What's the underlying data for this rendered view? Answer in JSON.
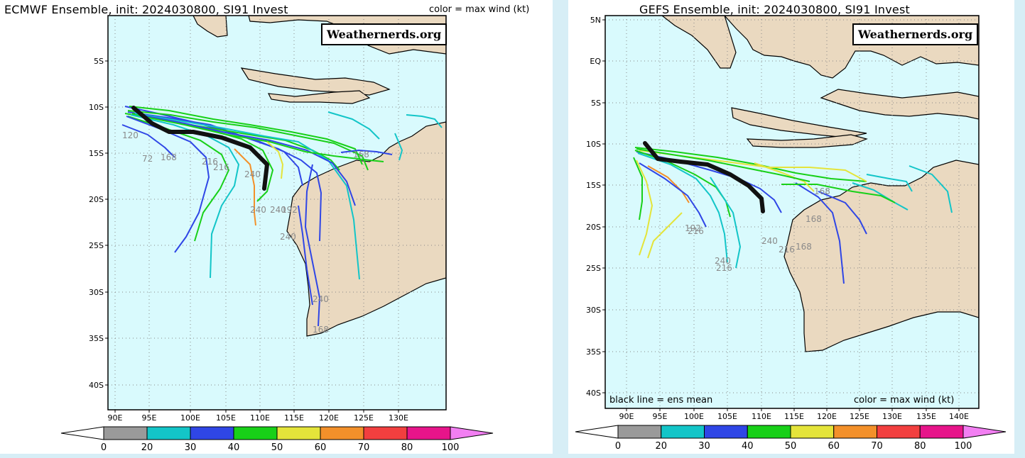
{
  "ecmwf": {
    "title": "ECMWF Ensemble, init: 2024030800, SI91 Invest",
    "note": "color = max wind (kt)",
    "watermark": "Weathernerds.org",
    "lat_labels": [
      "5S",
      "10S",
      "15S",
      "20S",
      "25S",
      "30S",
      "35S",
      "40S"
    ],
    "lon_labels": [
      "90E",
      "95E",
      "100E",
      "105E",
      "110E",
      "115E",
      "120E",
      "125E",
      "130E"
    ],
    "hour_labels": [
      "120",
      "72",
      "168",
      "216",
      "216",
      "240",
      "192",
      "240",
      "240",
      "168",
      "240",
      "240",
      "168"
    ],
    "colorbar_labels": [
      "0",
      "20",
      "30",
      "40",
      "50",
      "60",
      "70",
      "80",
      "100"
    ]
  },
  "gefs": {
    "title": "GEFS Ensemble, init: 2024030800, SI91 Invest",
    "watermark": "Weathernerds.org",
    "mean_note": "black line = ens mean",
    "note": "color = max wind (kt)",
    "lat_labels": [
      "5N",
      "EQ",
      "5S",
      "10S",
      "15S",
      "20S",
      "25S",
      "30S",
      "35S",
      "40S"
    ],
    "lon_labels": [
      "90E",
      "95E",
      "100E",
      "105E",
      "110E",
      "115E",
      "120E",
      "125E",
      "130E",
      "135E",
      "140E"
    ],
    "hour_labels": [
      "168",
      "192",
      "216",
      "240",
      "216",
      "168",
      "168",
      "240",
      "216"
    ],
    "colorbar_labels": [
      "0",
      "20",
      "30",
      "40",
      "50",
      "60",
      "70",
      "80",
      "100"
    ]
  },
  "colors": {
    "ocean": "#d9fafd",
    "land": "#ead9c0",
    "wind_bins": [
      "#9a9a9a",
      "#13c5c8",
      "#2f46e6",
      "#18d018",
      "#e4e43a",
      "#f3902a",
      "#f23f3f",
      "#e7148a",
      "#f27ff2"
    ]
  }
}
